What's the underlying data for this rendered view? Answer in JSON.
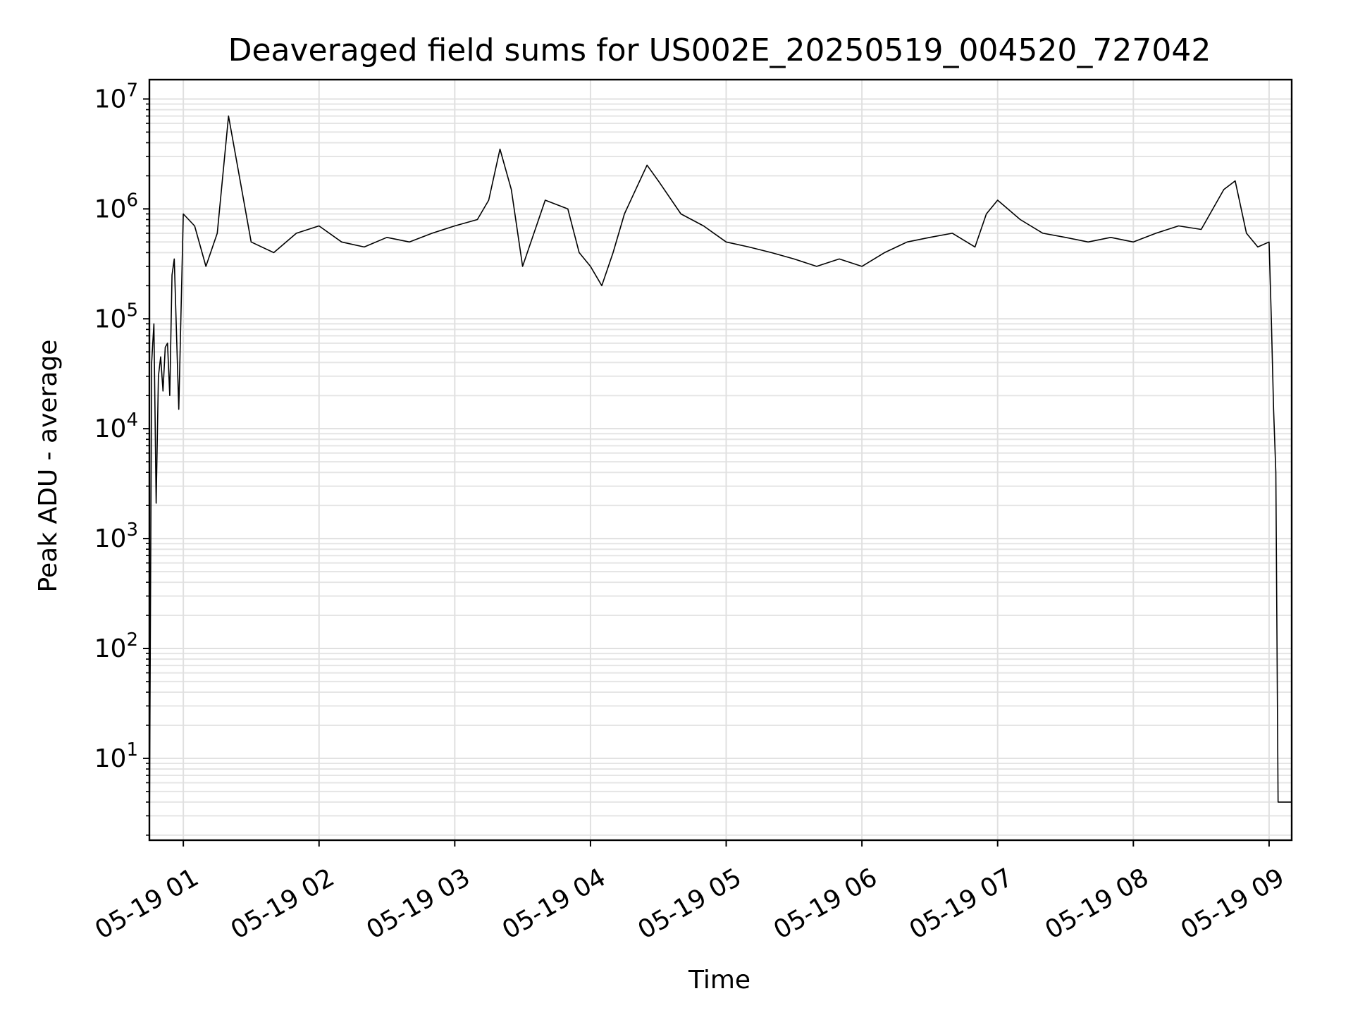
{
  "chart_data": {
    "type": "line",
    "title": "Deaveraged field sums for US002E_20250519_004520_727042",
    "xlabel": "Time",
    "ylabel": "Peak ADU - average",
    "yscale": "log",
    "ylim": [
      1.8,
      15000000
    ],
    "xlim": [
      "2025-05-19 00:45",
      "2025-05-19 09:10"
    ],
    "grid": true,
    "x_tick_labels": [
      "05-19 01",
      "05-19 02",
      "05-19 03",
      "05-19 04",
      "05-19 05",
      "05-19 06",
      "05-19 07",
      "05-19 08",
      "05-19 09"
    ],
    "y_tick_labels": [
      {
        "base": "10",
        "exp": "1"
      },
      {
        "base": "10",
        "exp": "2"
      },
      {
        "base": "10",
        "exp": "3"
      },
      {
        "base": "10",
        "exp": "4"
      },
      {
        "base": "10",
        "exp": "5"
      },
      {
        "base": "10",
        "exp": "6"
      },
      {
        "base": "10",
        "exp": "7"
      }
    ],
    "series": [
      {
        "color": "#000000",
        "x": [
          "2025-05-19 00:45",
          "2025-05-19 00:46",
          "2025-05-19 00:47",
          "2025-05-19 00:48",
          "2025-05-19 00:49",
          "2025-05-19 00:50",
          "2025-05-19 00:51",
          "2025-05-19 00:52",
          "2025-05-19 00:53",
          "2025-05-19 00:54",
          "2025-05-19 00:55",
          "2025-05-19 00:56",
          "2025-05-19 00:58",
          "2025-05-19 01:00",
          "2025-05-19 01:05",
          "2025-05-19 01:10",
          "2025-05-19 01:15",
          "2025-05-19 01:20",
          "2025-05-19 01:30",
          "2025-05-19 01:40",
          "2025-05-19 01:50",
          "2025-05-19 02:00",
          "2025-05-19 02:10",
          "2025-05-19 02:20",
          "2025-05-19 02:30",
          "2025-05-19 02:40",
          "2025-05-19 02:50",
          "2025-05-19 03:00",
          "2025-05-19 03:10",
          "2025-05-19 03:15",
          "2025-05-19 03:20",
          "2025-05-19 03:25",
          "2025-05-19 03:30",
          "2025-05-19 03:40",
          "2025-05-19 03:50",
          "2025-05-19 03:55",
          "2025-05-19 04:00",
          "2025-05-19 04:05",
          "2025-05-19 04:10",
          "2025-05-19 04:15",
          "2025-05-19 04:20",
          "2025-05-19 04:25",
          "2025-05-19 04:30",
          "2025-05-19 04:40",
          "2025-05-19 04:50",
          "2025-05-19 05:00",
          "2025-05-19 05:10",
          "2025-05-19 05:20",
          "2025-05-19 05:30",
          "2025-05-19 05:40",
          "2025-05-19 05:50",
          "2025-05-19 06:00",
          "2025-05-19 06:10",
          "2025-05-19 06:20",
          "2025-05-19 06:30",
          "2025-05-19 06:40",
          "2025-05-19 06:50",
          "2025-05-19 06:55",
          "2025-05-19 07:00",
          "2025-05-19 07:10",
          "2025-05-19 07:20",
          "2025-05-19 07:30",
          "2025-05-19 07:40",
          "2025-05-19 07:50",
          "2025-05-19 08:00",
          "2025-05-19 08:10",
          "2025-05-19 08:20",
          "2025-05-19 08:30",
          "2025-05-19 08:40",
          "2025-05-19 08:45",
          "2025-05-19 08:50",
          "2025-05-19 08:55",
          "2025-05-19 09:00",
          "2025-05-19 09:01",
          "2025-05-19 09:02",
          "2025-05-19 09:03",
          "2025-05-19 09:04",
          "2025-05-19 09:05",
          "2025-05-19 09:06",
          "2025-05-19 09:07",
          "2025-05-19 09:08",
          "2025-05-19 09:09",
          "2025-05-19 09:10"
        ],
        "y": [
          2,
          40000,
          90000,
          2100,
          30000,
          45000,
          22000,
          55000,
          60000,
          20000,
          250000,
          350000,
          15000,
          900000,
          700000,
          300000,
          600000,
          7000000,
          500000,
          400000,
          600000,
          700000,
          500000,
          450000,
          550000,
          500000,
          600000,
          700000,
          800000,
          1200000,
          3500000,
          1500000,
          300000,
          1200000,
          1000000,
          400000,
          300000,
          200000,
          400000,
          900000,
          1500000,
          2500000,
          1800000,
          900000,
          700000,
          500000,
          450000,
          400000,
          350000,
          300000,
          350000,
          300000,
          400000,
          500000,
          550000,
          600000,
          450000,
          900000,
          1200000,
          800000,
          600000,
          550000,
          500000,
          550000,
          500000,
          600000,
          700000,
          650000,
          1500000,
          1800000,
          600000,
          450000,
          500000,
          100000,
          15000,
          4000,
          4,
          4,
          4,
          4,
          4,
          4,
          4
        ]
      }
    ]
  }
}
